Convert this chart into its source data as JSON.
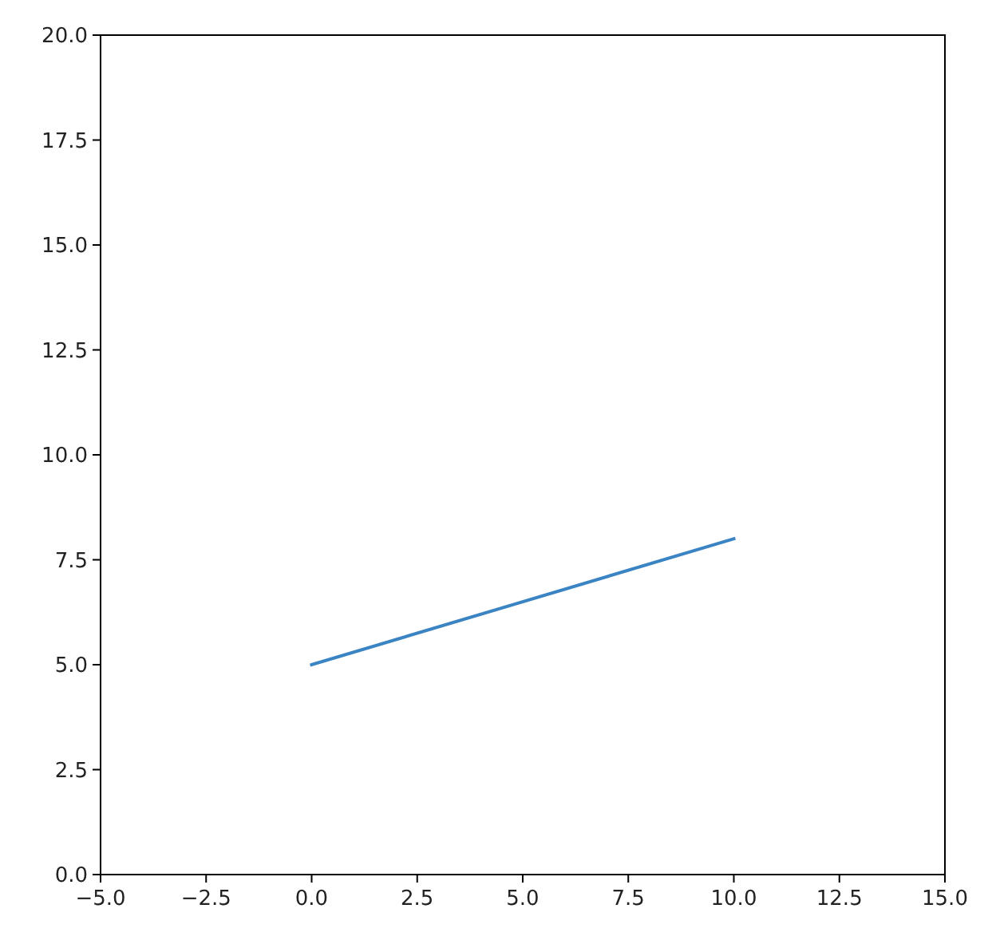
{
  "chart_data": {
    "type": "line",
    "x": [
      0,
      10
    ],
    "series": [
      {
        "color": "#3b84c4",
        "values": [
          5,
          8
        ]
      }
    ],
    "xlim": [
      -5,
      15
    ],
    "xticks": [
      {
        "value": -5,
        "label": "−5.0"
      },
      {
        "value": -2.5,
        "label": "−2.5"
      },
      {
        "value": 0,
        "label": "0.0"
      },
      {
        "value": 2.5,
        "label": "2.5"
      },
      {
        "value": 5,
        "label": "5.0"
      },
      {
        "value": 7.5,
        "label": "7.5"
      },
      {
        "value": 10,
        "label": "10.0"
      },
      {
        "value": 12.5,
        "label": "12.5"
      },
      {
        "value": 15,
        "label": "15.0"
      }
    ],
    "ylim": [
      0,
      20
    ],
    "yticks": [
      {
        "value": 0,
        "label": "0.0"
      },
      {
        "value": 2.5,
        "label": "2.5"
      },
      {
        "value": 5,
        "label": "5.0"
      },
      {
        "value": 7.5,
        "label": "7.5"
      },
      {
        "value": 10,
        "label": "10.0"
      },
      {
        "value": 12.5,
        "label": "12.5"
      },
      {
        "value": 15,
        "label": "15.0"
      },
      {
        "value": 17.5,
        "label": "17.5"
      },
      {
        "value": 20,
        "label": "20.0"
      }
    ]
  }
}
